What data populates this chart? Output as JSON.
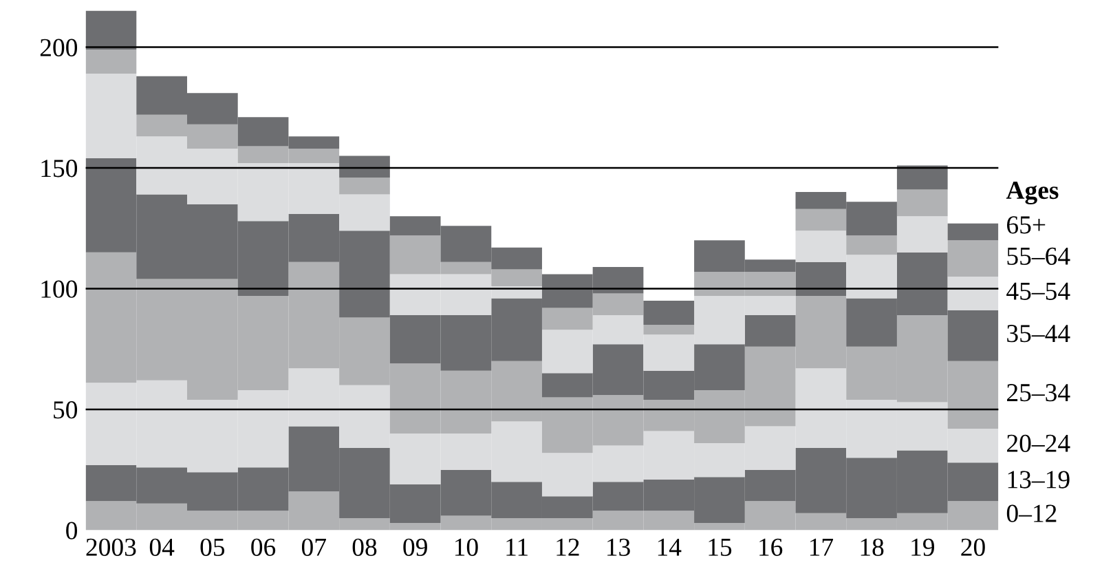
{
  "chart_data": {
    "type": "bar",
    "stacked": true,
    "legend_title": "Ages",
    "legend": "right",
    "categories": [
      "2003",
      "04",
      "05",
      "06",
      "07",
      "08",
      "09",
      "10",
      "11",
      "12",
      "13",
      "14",
      "15",
      "16",
      "17",
      "18",
      "19",
      "20"
    ],
    "series": [
      {
        "name": "0–12",
        "color": "#b1b2b4",
        "values": [
          12,
          11,
          8,
          8,
          16,
          5,
          3,
          6,
          5,
          5,
          8,
          8,
          3,
          12,
          7,
          5,
          7,
          12
        ]
      },
      {
        "name": "13–19",
        "color": "#6d6e71",
        "values": [
          15,
          15,
          16,
          18,
          27,
          29,
          16,
          19,
          15,
          9,
          12,
          13,
          19,
          13,
          27,
          25,
          26,
          16
        ]
      },
      {
        "name": "20–24",
        "color": "#dcdddf",
        "values": [
          34,
          36,
          30,
          32,
          24,
          26,
          21,
          15,
          25,
          18,
          15,
          20,
          14,
          18,
          33,
          24,
          20,
          14
        ]
      },
      {
        "name": "25–34",
        "color": "#b1b2b4",
        "values": [
          54,
          42,
          50,
          39,
          44,
          28,
          29,
          26,
          25,
          23,
          21,
          13,
          22,
          33,
          30,
          22,
          36,
          28
        ]
      },
      {
        "name": "35–44",
        "color": "#6d6e71",
        "values": [
          39,
          35,
          31,
          31,
          20,
          36,
          20,
          23,
          26,
          10,
          21,
          12,
          19,
          13,
          14,
          20,
          26,
          21
        ]
      },
      {
        "name": "45–54",
        "color": "#dcdddf",
        "values": [
          35,
          24,
          23,
          24,
          21,
          15,
          17,
          17,
          5,
          18,
          12,
          15,
          20,
          8,
          13,
          18,
          15,
          14
        ]
      },
      {
        "name": "55–64",
        "color": "#b1b2b4",
        "values": [
          10,
          9,
          10,
          7,
          6,
          7,
          16,
          5,
          7,
          9,
          9,
          4,
          10,
          10,
          9,
          8,
          11,
          15
        ]
      },
      {
        "name": "65+",
        "color": "#6d6e71",
        "values": [
          16,
          16,
          13,
          12,
          5,
          9,
          8,
          15,
          9,
          14,
          11,
          10,
          13,
          5,
          7,
          14,
          10,
          7
        ]
      }
    ],
    "ylim": [
      0,
      216
    ],
    "yticks": [
      0,
      50,
      100,
      150,
      200
    ],
    "grid": "y"
  }
}
